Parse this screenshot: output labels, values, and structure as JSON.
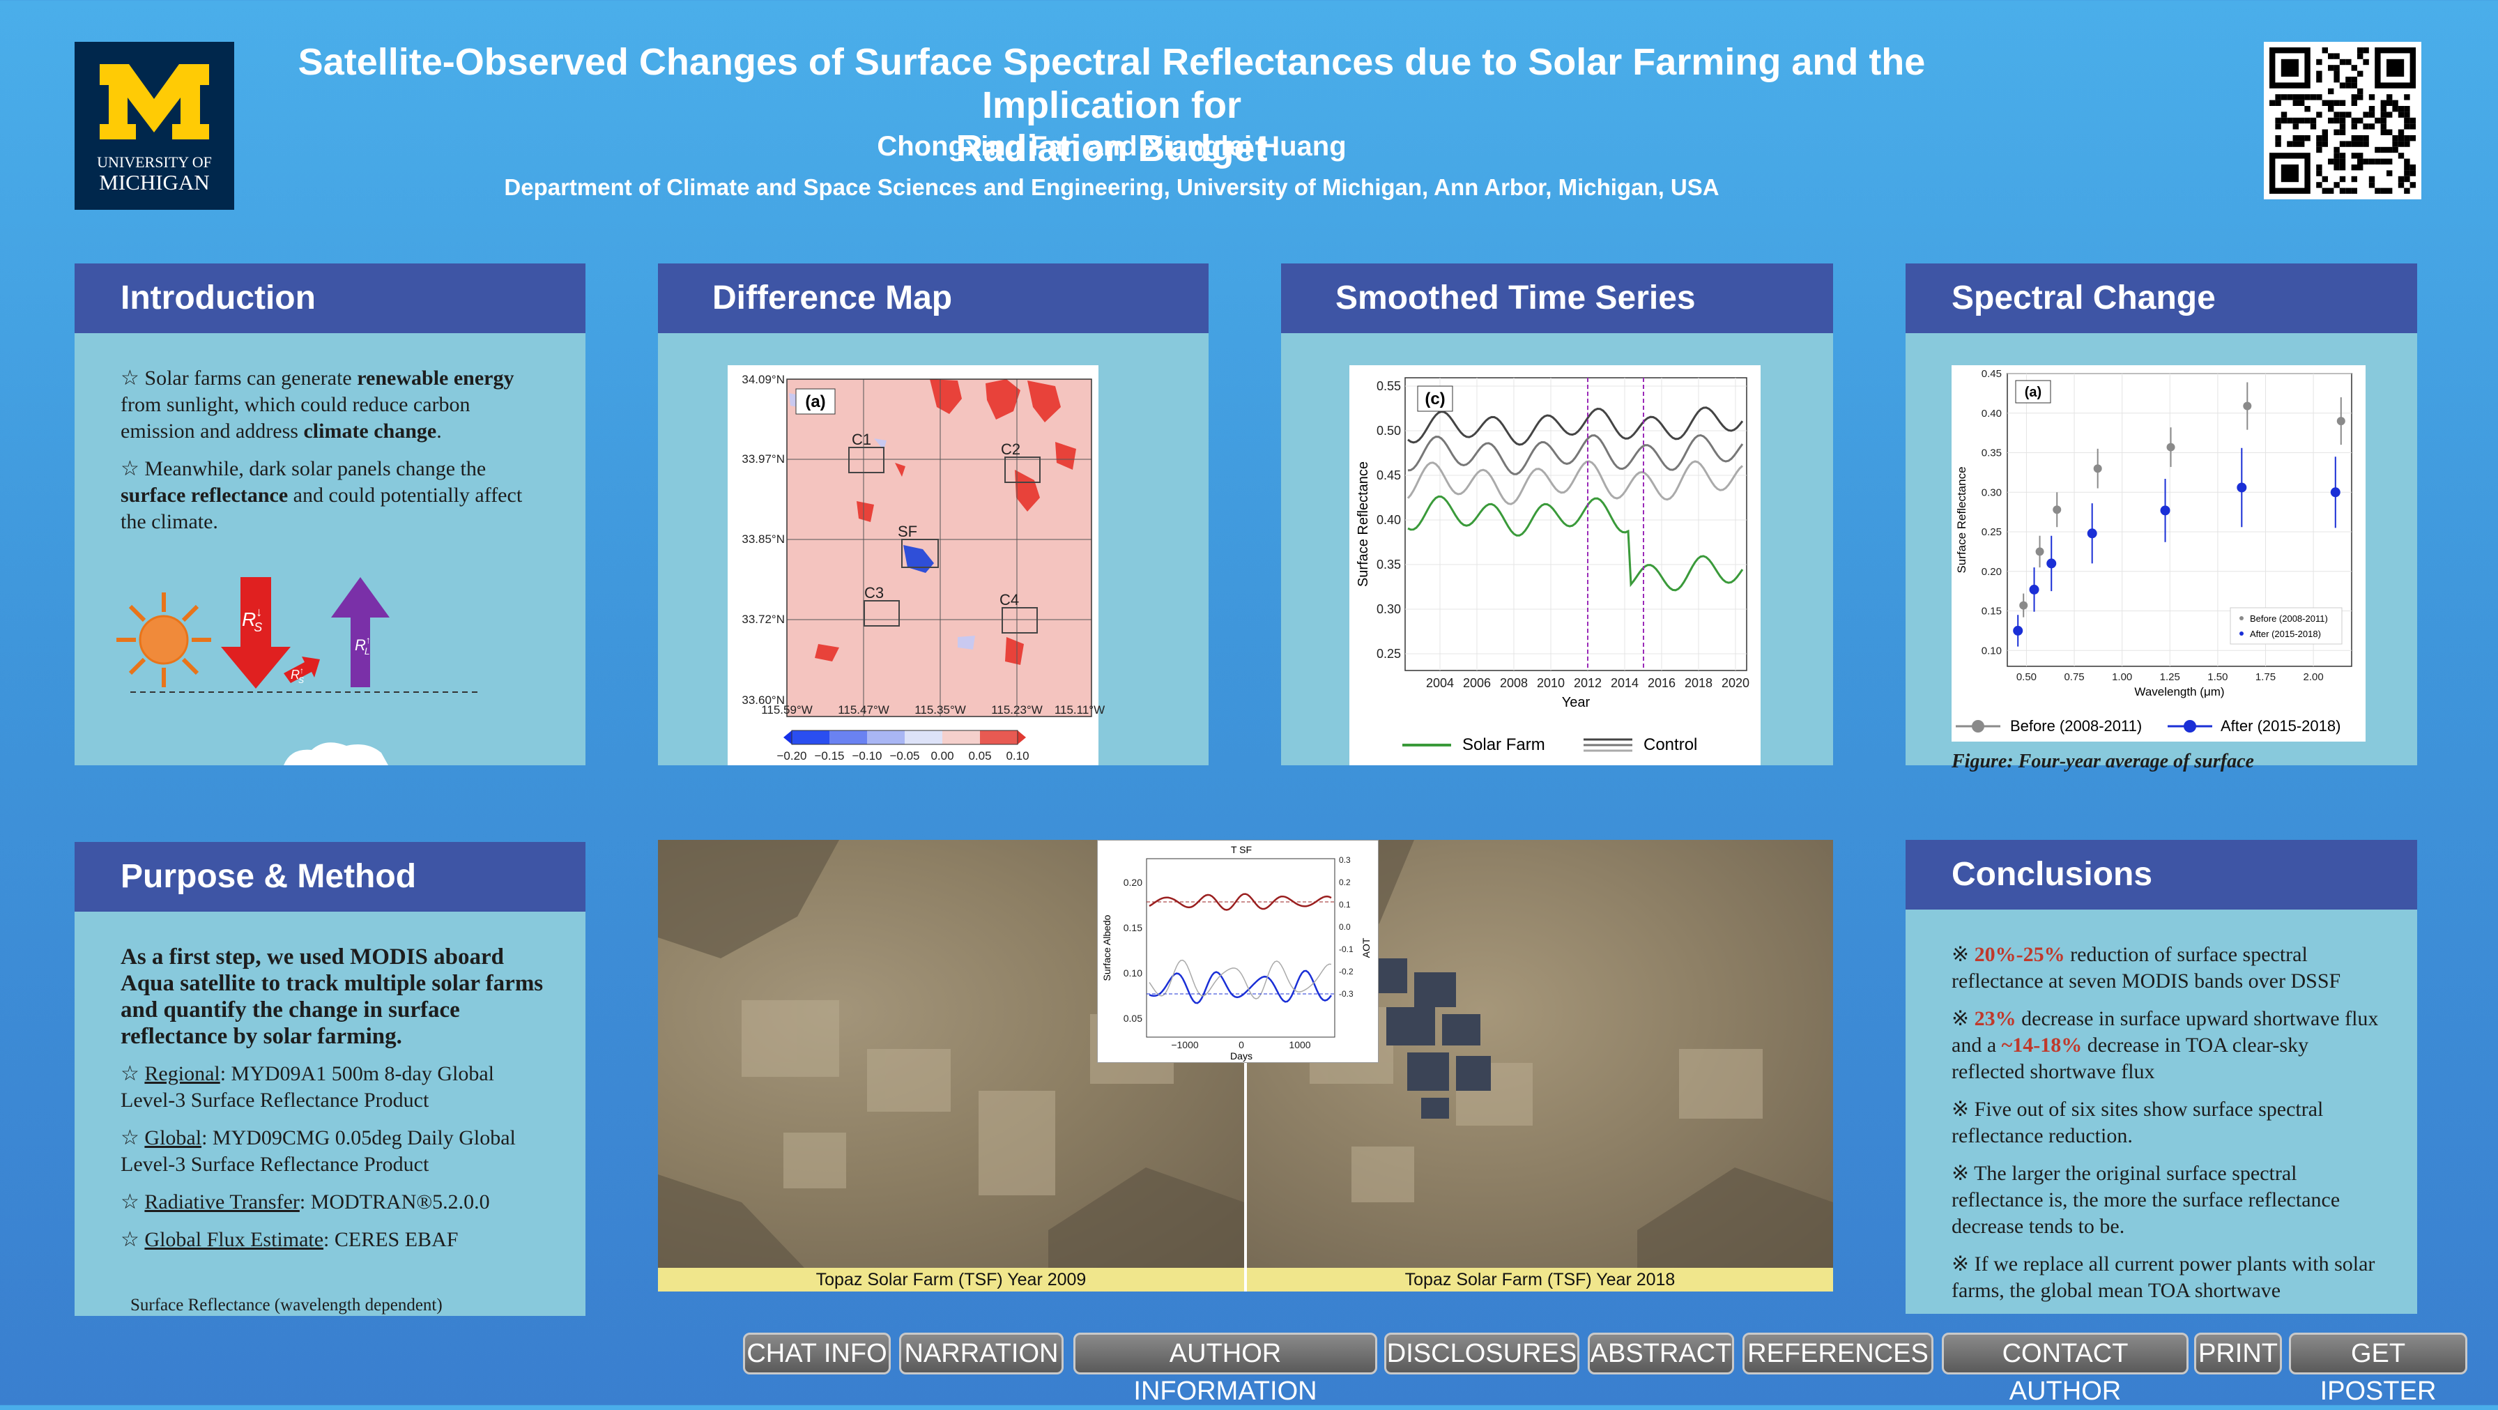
{
  "header": {
    "logo_line1": "UNIVERSITY OF",
    "logo_line2": "MICHIGAN",
    "title_line1": "Satellite-Observed Changes of Surface Spectral Reflectances due to Solar Farming and the Implication for",
    "title_line2": "Radiation Budget",
    "authors": "Chongxing Fan and Xianglei Huang",
    "affiliation": "Department of Climate and Space Sciences and Engineering, University of Michigan, Ann Arbor, Michigan, USA"
  },
  "intro": {
    "heading": "Introduction",
    "p1_a": "☆ Solar farms can generate ",
    "p1_b": "renewable energy",
    "p1_c": " from sunlight, which could reduce carbon emission and address ",
    "p1_d": "climate change",
    "p1_e": ".",
    "p2_a": "☆ Meanwhile, dark solar panels change the ",
    "p2_b": "surface reflectance",
    "p2_c": " and could potentially affect the climate.",
    "label_rs_down": "R",
    "label_rs_down_sup": "↓",
    "label_rs_down_sub": "S",
    "label_rs_up": "R",
    "label_rs_up_sup": "↑",
    "label_rs_up_sub": "S",
    "label_rl_up": "R",
    "label_rl_up_sup": "↑",
    "label_rl_up_sub": "L"
  },
  "diffmap": {
    "heading": "Difference Map",
    "panel_label": "(a)",
    "lat_labels": [
      "34.09°N",
      "33.97°N",
      "33.85°N",
      "33.72°N",
      "33.60°N"
    ],
    "lon_labels": [
      "115.59°W",
      "115.47°W",
      "115.35°W",
      "115.23°W",
      "115.11°W"
    ],
    "site_labels": [
      "C1",
      "C2",
      "SF",
      "C3",
      "C4"
    ],
    "colorbar_ticks": [
      "−0.20",
      "−0.15",
      "−0.10",
      "−0.05",
      "0.00",
      "0.05",
      "0.10"
    ]
  },
  "timeseries": {
    "heading": "Smoothed Time Series",
    "panel_label": "(c)",
    "ylabel": "Surface Reflectance",
    "xlabel": "Year",
    "yticks": [
      "0.55",
      "0.50",
      "0.45",
      "0.40",
      "0.35",
      "0.30",
      "0.25"
    ],
    "xticks": [
      "2004",
      "2006",
      "2008",
      "2010",
      "2012",
      "2014",
      "2016",
      "2018",
      "2020"
    ],
    "legend_solar": "Solar Farm",
    "legend_control": "Control"
  },
  "spectral": {
    "heading": "Spectral Change",
    "caption_partial": "Figure: Four-year average of surface",
    "chart_data": {
      "type": "scatter",
      "panel_label": "(a)",
      "xlabel": "Wavelength (μm)",
      "ylabel": "Surface Reflectance",
      "xlim": [
        0.4,
        2.2
      ],
      "ylim": [
        0.08,
        0.45
      ],
      "xticks": [
        "0.50",
        "0.75",
        "1.00",
        "1.25",
        "1.50",
        "1.75",
        "2.00"
      ],
      "yticks": [
        "0.45",
        "0.40",
        "0.35",
        "0.30",
        "0.25",
        "0.20",
        "0.15",
        "0.10"
      ],
      "x": [
        0.47,
        0.555,
        0.645,
        0.858,
        1.24,
        1.64,
        2.13
      ],
      "series": [
        {
          "name": "Before (2008-2011)",
          "values": [
            0.157,
            0.225,
            0.278,
            0.33,
            0.357,
            0.409,
            0.39
          ],
          "err": [
            0.015,
            0.02,
            0.022,
            0.025,
            0.025,
            0.03,
            0.03
          ],
          "color": "#8a8a8a"
        },
        {
          "name": "After (2015-2018)",
          "values": [
            0.125,
            0.177,
            0.21,
            0.248,
            0.277,
            0.306,
            0.3
          ],
          "err": [
            0.02,
            0.028,
            0.035,
            0.038,
            0.04,
            0.05,
            0.045
          ],
          "color": "#1a2fd6"
        }
      ],
      "legend_inner_before": "Before (2008-2011)",
      "legend_inner_after": "After (2015-2018)"
    }
  },
  "purpose": {
    "heading": "Purpose & Method",
    "lead": "As a first step, we used MODIS aboard Aqua satellite to track multiple solar farms and quantify the change in surface reflectance by solar farming.",
    "items": [
      {
        "key": "Regional",
        "text": ": MYD09A1 500m 8-day Global Level-3 Surface Reflectance Product"
      },
      {
        "key": "Global",
        "text": ": MYD09CMG 0.05deg Daily Global Level-3 Surface Reflectance Product"
      },
      {
        "key": "Radiative Transfer",
        "text": ": MODTRAN®5.2.0.0"
      },
      {
        "key": "Global Flux Estimate",
        "text": ": CERES EBAF"
      }
    ],
    "cut_text": "Surface Reflectance (wavelength dependent)"
  },
  "satellite": {
    "caption_left": "Topaz Solar Farm (TSF) Year 2009",
    "caption_right": "Topaz Solar Farm (TSF) Year 2018",
    "inset": {
      "title": "T SF",
      "ylabel_left": "Surface Albedo",
      "ylabel_right": "AOT",
      "xlabel": "Days",
      "yticks_left": [
        "0.20",
        "0.15",
        "0.10",
        "0.05"
      ],
      "yticks_right": [
        "0.3",
        "0.2",
        "0.1",
        "0.0",
        "-0.1",
        "-0.2",
        "-0.3"
      ],
      "xticks": [
        "−1000",
        "0",
        "1000"
      ]
    }
  },
  "conclusions": {
    "heading": "Conclusions",
    "c1_a": "※ ",
    "c1_b": "20%-25%",
    "c1_c": " reduction of surface spectral reflectance at seven MODIS bands over DSSF",
    "c2_a": "※ ",
    "c2_b": "23%",
    "c2_c": " decrease in surface upward shortwave flux and a ",
    "c2_d": "~14-18%",
    "c2_e": " decrease in TOA clear-sky reflected shortwave flux",
    "c3": "※ Five out of six sites show surface spectral reflectance reduction.",
    "c4": "※ The larger the original surface spectral reflectance is, the more the surface reflectance decrease tends to be.",
    "c5": "※ If we replace all current power plants with solar farms, the global mean TOA shortwave"
  },
  "nav": [
    "CHAT INFO",
    "NARRATION",
    "AUTHOR INFORMATION",
    "DISCLOSURES",
    "ABSTRACT",
    "REFERENCES",
    "CONTACT AUTHOR",
    "PRINT",
    "GET IPOSTER"
  ]
}
